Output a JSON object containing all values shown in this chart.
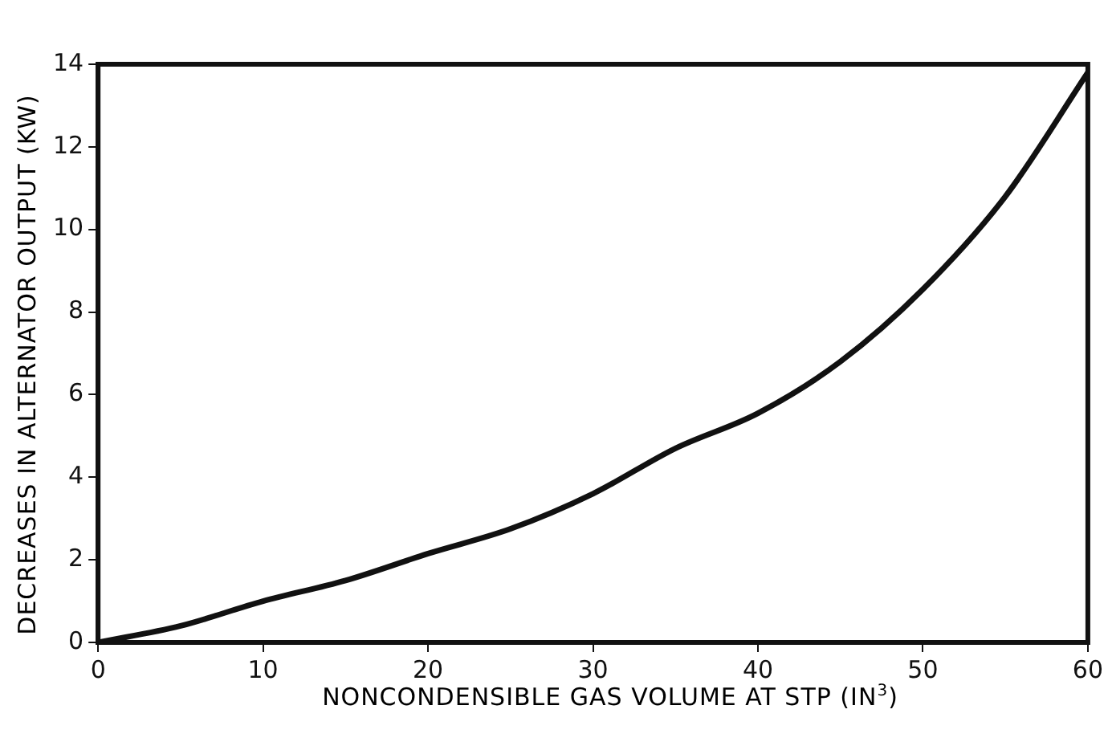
{
  "chart_data": {
    "type": "line",
    "xlabel": "NONCONDENSIBLE GAS VOLUME AT STP (IN$^{3}$)",
    "ylabel": "DECREASES IN ALTERNATOR OUTPUT (KW)",
    "x": [
      0,
      5,
      10,
      15,
      20,
      25,
      30,
      35,
      40,
      45,
      50,
      55,
      60
    ],
    "series": [
      {
        "color": "#111111",
        "values": [
          0,
          0.4,
          1.0,
          1.5,
          2.15,
          2.75,
          3.6,
          4.7,
          5.55,
          6.8,
          8.55,
          10.8,
          13.8
        ]
      }
    ],
    "xlim": [
      0,
      60
    ],
    "xticks": [
      0,
      10,
      20,
      30,
      40,
      50,
      60
    ],
    "ylim": [
      0,
      14
    ],
    "yticks": [
      0,
      2,
      4,
      6,
      8,
      10,
      12,
      14
    ],
    "grid": false,
    "legend": false,
    "marker": "none",
    "line_style": "solid"
  }
}
